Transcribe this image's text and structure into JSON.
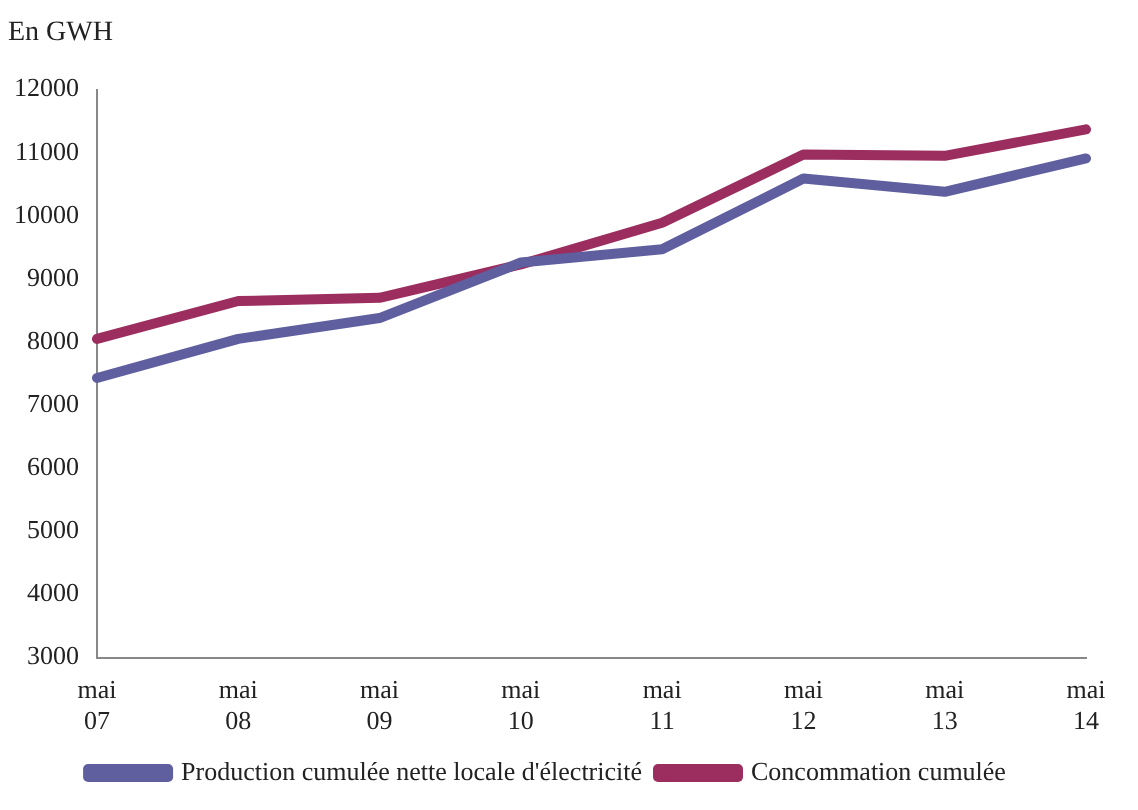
{
  "chart_data": {
    "type": "line",
    "ylabel": "En GWH",
    "categories": [
      "mai\n07",
      "mai\n08",
      "mai\n09",
      "mai\n10",
      "mai\n11",
      "mai\n12",
      "mai\n13",
      "mai\n14"
    ],
    "series": [
      {
        "name": "Production cumulée nette locale d'électricité",
        "color": "#5f5f9f",
        "values": [
          7430,
          8050,
          8380,
          9260,
          9470,
          10590,
          10380,
          10910
        ]
      },
      {
        "name": "Concommation cumulée",
        "color": "#9b2d5f",
        "values": [
          8050,
          8650,
          8700,
          9230,
          9890,
          10970,
          10950,
          11370
        ]
      }
    ],
    "ylim": [
      3000,
      12000
    ],
    "yticks": [
      3000,
      4000,
      5000,
      6000,
      7000,
      8000,
      9000,
      10000,
      11000,
      12000
    ],
    "grid": false,
    "legend": "bottom",
    "marker": "none",
    "line_style": "solid"
  }
}
